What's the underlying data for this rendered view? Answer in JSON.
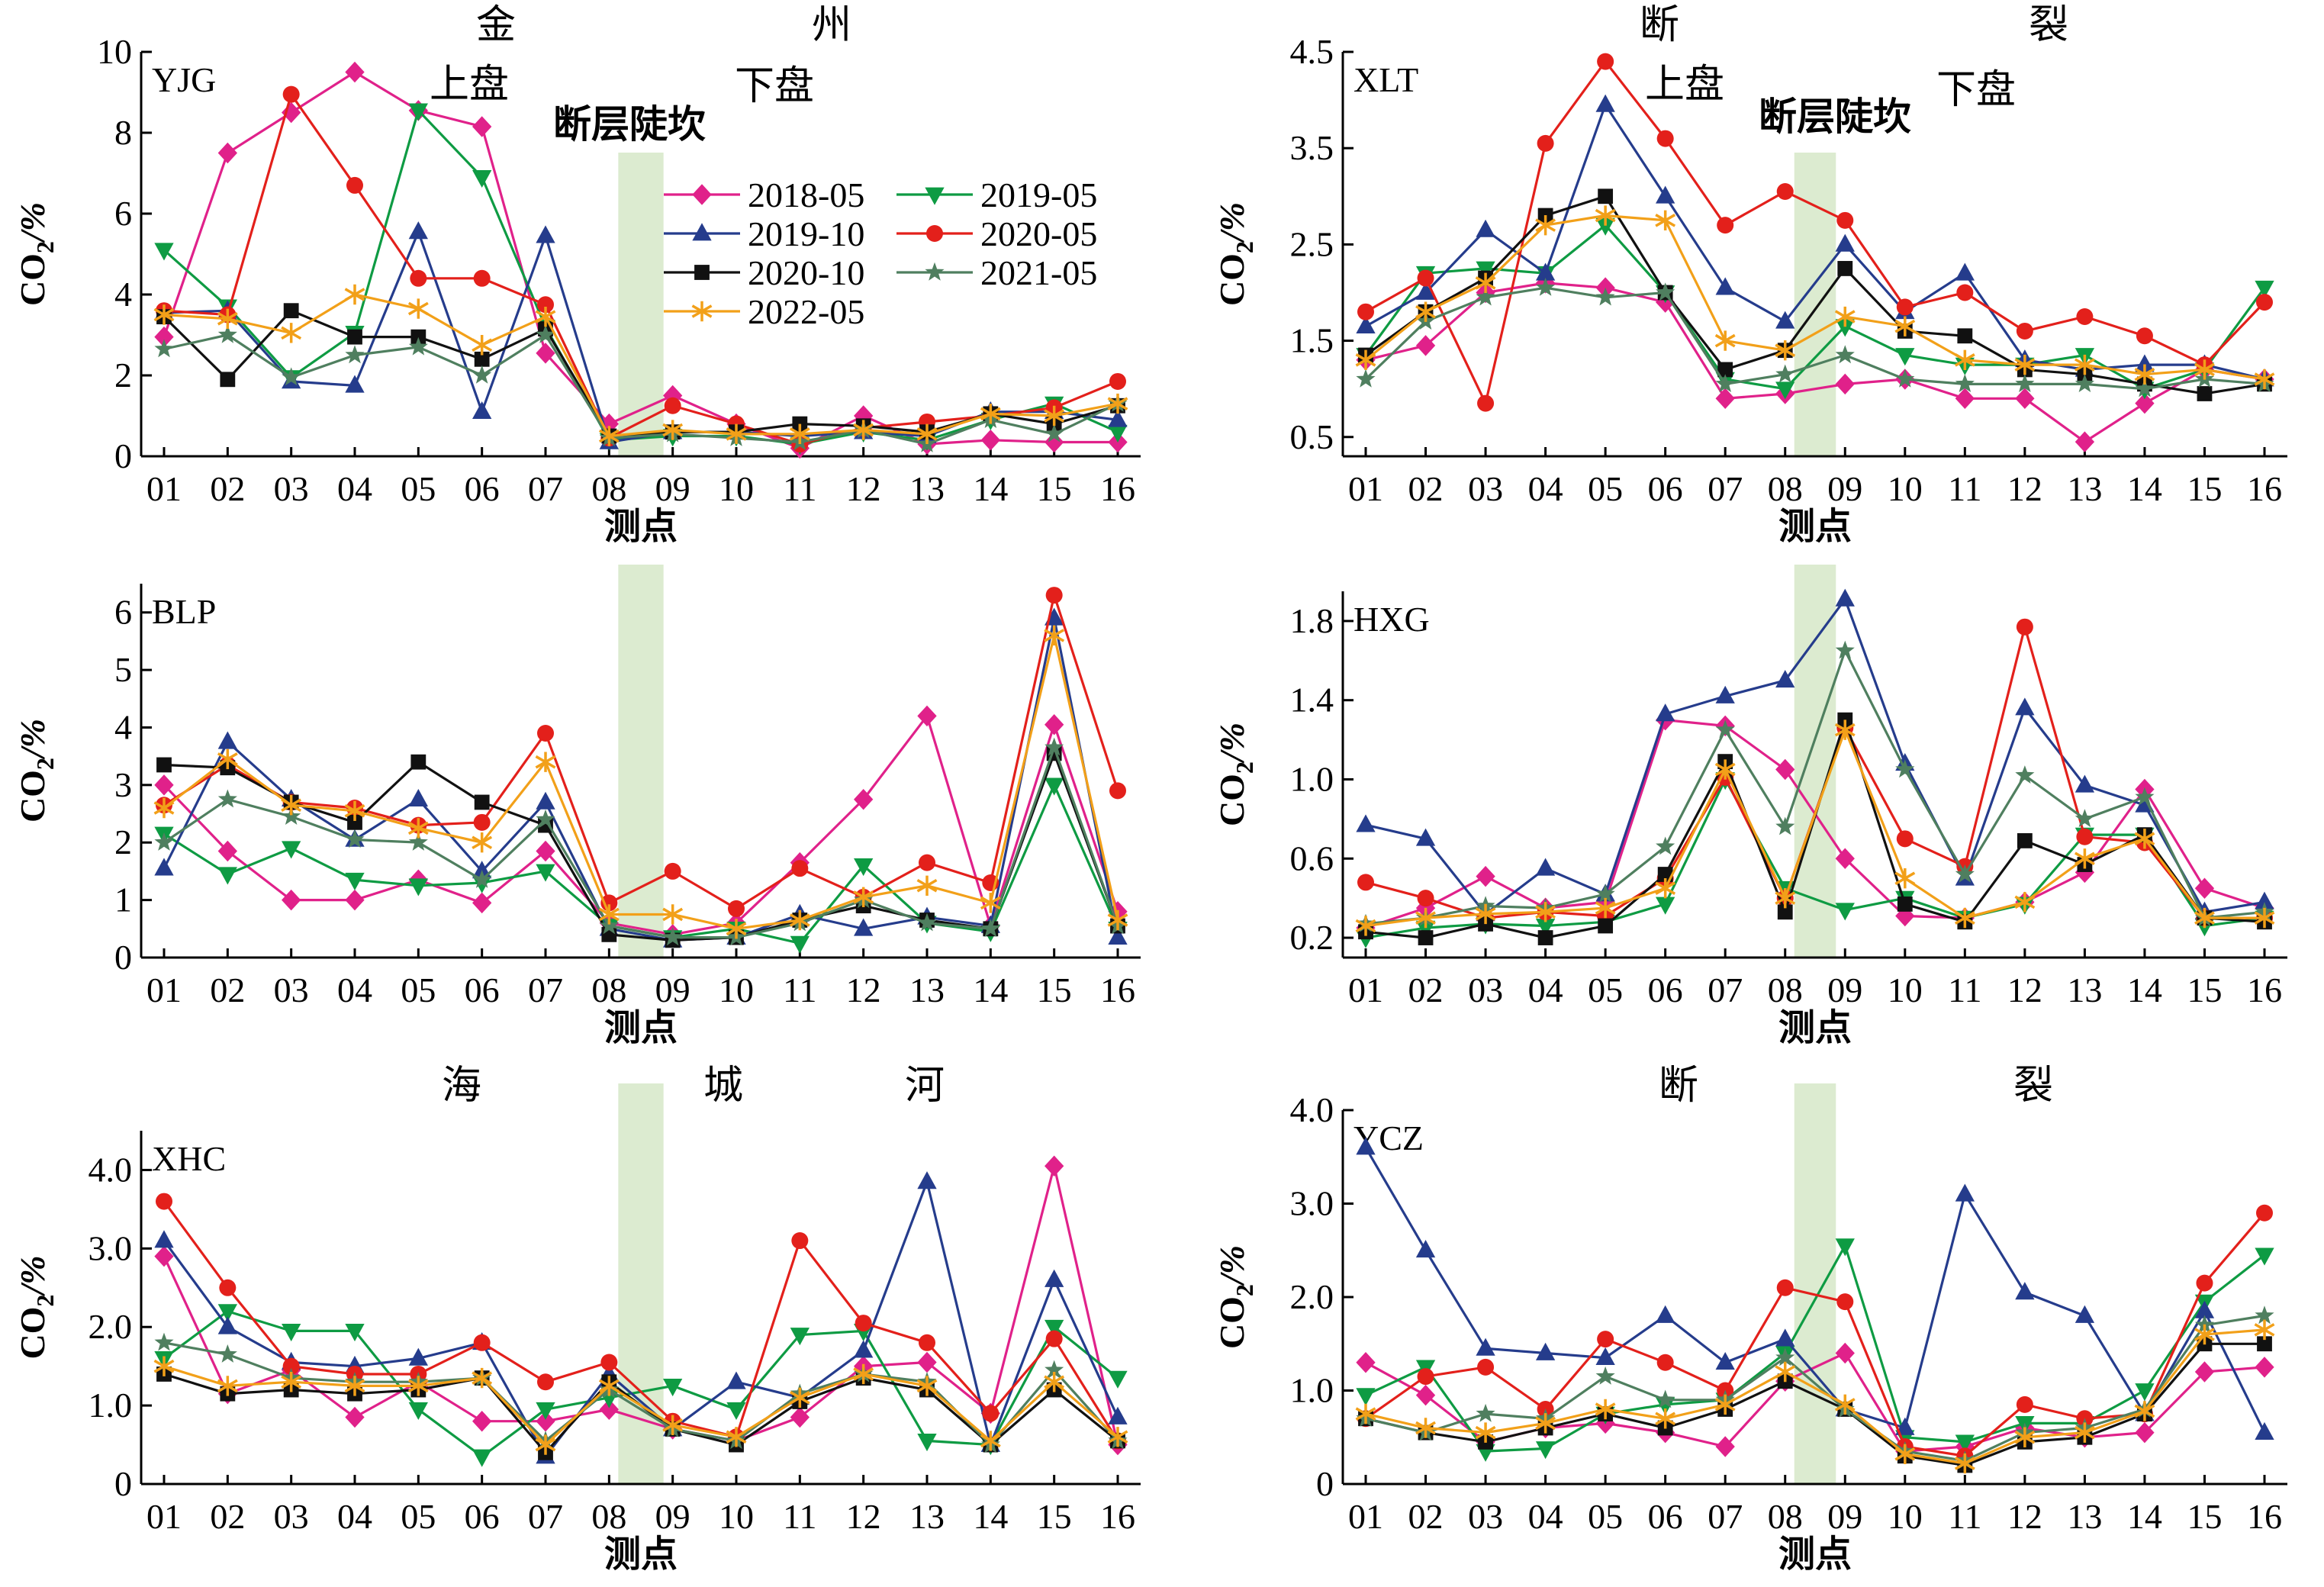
{
  "figure": {
    "xlabel": "测点",
    "ylabel_base": "CO",
    "ylabel_sub": "2",
    "ylabel_unit": "/%",
    "fault_scarp_label": "断层陡坎",
    "hanging_wall_label": "上盘",
    "footwall_label": "下盘",
    "top_left_title_chars": [
      "金",
      "州"
    ],
    "top_right_title_chars": [
      "断",
      "裂"
    ],
    "bottom_left_title_chars": [
      "海",
      "城",
      "河"
    ],
    "bottom_right_title_chars": [
      "断",
      "裂"
    ],
    "band_color": "#dcebd0"
  },
  "legend": [
    {
      "label": "2018-05",
      "color": "#e0218a",
      "marker": "diamond"
    },
    {
      "label": "2019-05",
      "color": "#0e9b43",
      "marker": "triangle-down"
    },
    {
      "label": "2019-10",
      "color": "#253c8c",
      "marker": "triangle-up"
    },
    {
      "label": "2020-05",
      "color": "#e3201b",
      "marker": "circle"
    },
    {
      "label": "2020-10",
      "color": "#111111",
      "marker": "square"
    },
    {
      "label": "2021-05",
      "color": "#4f7f5f",
      "marker": "star"
    },
    {
      "label": "2022-05",
      "color": "#f2a019",
      "marker": "asterisk"
    }
  ],
  "chart_data": [
    {
      "type": "line",
      "panel": "YJG",
      "categories": [
        "01",
        "02",
        "03",
        "04",
        "05",
        "06",
        "07",
        "08",
        "09",
        "10",
        "11",
        "12",
        "13",
        "14",
        "15",
        "16"
      ],
      "ylim": [
        0,
        10
      ],
      "yticks": [
        0,
        2,
        4,
        6,
        8,
        10
      ],
      "ytick_labels": [
        "0",
        "2",
        "4",
        "6",
        "8",
        "10"
      ],
      "series": [
        {
          "name": "2018-05",
          "values": [
            2.95,
            7.5,
            8.5,
            9.5,
            8.55,
            8.15,
            2.55,
            0.8,
            1.5,
            0.8,
            0.2,
            1.0,
            0.3,
            0.4,
            0.35,
            0.35
          ]
        },
        {
          "name": "2019-05",
          "values": [
            5.1,
            3.7,
            1.95,
            3.05,
            8.55,
            6.9,
            3.2,
            0.4,
            0.5,
            0.5,
            0.3,
            0.6,
            0.4,
            0.9,
            1.3,
            0.6
          ]
        },
        {
          "name": "2019-10",
          "values": [
            3.55,
            3.6,
            1.85,
            1.75,
            5.55,
            1.1,
            5.45,
            0.35,
            0.6,
            0.6,
            0.5,
            0.6,
            0.5,
            1.1,
            1.1,
            0.9
          ]
        },
        {
          "name": "2020-05",
          "values": [
            3.6,
            3.5,
            8.95,
            6.7,
            4.4,
            4.4,
            3.75,
            0.45,
            1.25,
            0.8,
            0.3,
            0.7,
            0.85,
            1.0,
            1.2,
            1.85
          ]
        },
        {
          "name": "2020-10",
          "values": [
            3.45,
            1.9,
            3.6,
            2.95,
            2.95,
            2.4,
            3.15,
            0.5,
            0.6,
            0.6,
            0.8,
            0.75,
            0.6,
            1.05,
            0.8,
            1.25
          ]
        },
        {
          "name": "2021-05",
          "values": [
            2.65,
            3.0,
            1.95,
            2.5,
            2.7,
            2.0,
            3.0,
            0.45,
            0.55,
            0.45,
            0.35,
            0.65,
            0.3,
            0.9,
            0.55,
            1.3
          ]
        },
        {
          "name": "2022-05",
          "values": [
            3.5,
            3.4,
            3.05,
            4.0,
            3.65,
            2.75,
            3.45,
            0.5,
            0.65,
            0.55,
            0.55,
            0.65,
            0.55,
            1.05,
            1.0,
            1.3
          ]
        }
      ]
    },
    {
      "type": "line",
      "panel": "XLT",
      "categories": [
        "01",
        "02",
        "03",
        "04",
        "05",
        "06",
        "07",
        "08",
        "09",
        "10",
        "11",
        "12",
        "13",
        "14",
        "15",
        "16"
      ],
      "ylim": [
        0.3,
        4.5
      ],
      "yticks": [
        0.5,
        1.5,
        2.5,
        3.5,
        4.5
      ],
      "ytick_labels": [
        "0.5",
        "1.5",
        "2.5",
        "3.5",
        "4.5"
      ],
      "series": [
        {
          "name": "2018-05",
          "values": [
            1.3,
            1.45,
            2.0,
            2.1,
            2.05,
            1.9,
            0.9,
            0.95,
            1.05,
            1.1,
            0.9,
            0.9,
            0.45,
            0.85,
            1.2,
            1.1
          ]
        },
        {
          "name": "2019-05",
          "values": [
            1.35,
            2.2,
            2.25,
            2.2,
            2.7,
            2.0,
            1.1,
            1.0,
            1.65,
            1.35,
            1.25,
            1.25,
            1.35,
            1.0,
            1.2,
            2.05
          ]
        },
        {
          "name": "2019-10",
          "values": [
            1.65,
            2.0,
            2.65,
            2.2,
            3.95,
            3.0,
            2.05,
            1.7,
            2.5,
            1.8,
            2.2,
            1.3,
            1.2,
            1.25,
            1.25,
            1.1
          ]
        },
        {
          "name": "2020-05",
          "values": [
            1.8,
            2.15,
            0.85,
            3.55,
            4.4,
            3.6,
            2.7,
            3.05,
            2.75,
            1.85,
            2.0,
            1.6,
            1.75,
            1.55,
            1.25,
            1.9
          ]
        },
        {
          "name": "2020-10",
          "values": [
            1.35,
            1.8,
            2.15,
            2.8,
            3.0,
            2.0,
            1.2,
            1.4,
            2.25,
            1.6,
            1.55,
            1.2,
            1.15,
            1.05,
            0.95,
            1.05
          ]
        },
        {
          "name": "2021-05",
          "values": [
            1.1,
            1.7,
            1.95,
            2.05,
            1.95,
            2.0,
            1.05,
            1.15,
            1.35,
            1.1,
            1.05,
            1.05,
            1.05,
            1.0,
            1.1,
            1.05
          ]
        },
        {
          "name": "2022-05",
          "values": [
            1.3,
            1.8,
            2.1,
            2.7,
            2.8,
            2.75,
            1.5,
            1.4,
            1.75,
            1.65,
            1.3,
            1.25,
            1.25,
            1.15,
            1.2,
            1.1
          ]
        }
      ]
    },
    {
      "type": "line",
      "panel": "BLP",
      "categories": [
        "01",
        "02",
        "03",
        "04",
        "05",
        "06",
        "07",
        "08",
        "09",
        "10",
        "11",
        "12",
        "13",
        "14",
        "15",
        "16"
      ],
      "ylim": [
        0,
        6.5
      ],
      "yticks": [
        0,
        1,
        2,
        3,
        4,
        5,
        6
      ],
      "ytick_labels": [
        "0",
        "1",
        "2",
        "3",
        "4",
        "5",
        "6"
      ],
      "series": [
        {
          "name": "2018-05",
          "values": [
            3.0,
            1.85,
            1.0,
            1.0,
            1.35,
            0.95,
            1.85,
            0.6,
            0.4,
            0.6,
            1.65,
            2.75,
            4.2,
            0.55,
            4.05,
            0.8
          ]
        },
        {
          "name": "2019-05",
          "values": [
            2.15,
            1.45,
            1.9,
            1.35,
            1.25,
            1.3,
            1.5,
            0.55,
            0.35,
            0.5,
            0.25,
            1.6,
            0.6,
            0.45,
            3.0,
            0.5
          ]
        },
        {
          "name": "2019-10",
          "values": [
            1.55,
            3.75,
            2.75,
            2.05,
            2.75,
            1.5,
            2.7,
            0.5,
            0.3,
            0.35,
            0.75,
            0.5,
            0.7,
            0.55,
            5.9,
            0.35
          ]
        },
        {
          "name": "2020-05",
          "values": [
            2.65,
            3.35,
            2.7,
            2.6,
            2.3,
            2.35,
            3.9,
            0.95,
            1.5,
            0.85,
            1.55,
            1.05,
            1.65,
            1.3,
            6.3,
            2.9
          ]
        },
        {
          "name": "2020-10",
          "values": [
            3.35,
            3.3,
            2.7,
            2.35,
            3.4,
            2.7,
            2.3,
            0.4,
            0.3,
            0.35,
            0.65,
            0.9,
            0.65,
            0.5,
            3.55,
            0.55
          ]
        },
        {
          "name": "2021-05",
          "values": [
            2.0,
            2.75,
            2.45,
            2.05,
            2.0,
            1.35,
            2.4,
            0.55,
            0.35,
            0.35,
            0.6,
            1.0,
            0.6,
            0.5,
            3.65,
            0.55
          ]
        },
        {
          "name": "2022-05",
          "values": [
            2.6,
            3.45,
            2.65,
            2.55,
            2.25,
            2.0,
            3.4,
            0.75,
            0.75,
            0.5,
            0.65,
            1.05,
            1.25,
            0.95,
            5.6,
            0.65
          ]
        }
      ]
    },
    {
      "type": "line",
      "panel": "HXG",
      "categories": [
        "01",
        "02",
        "03",
        "04",
        "05",
        "06",
        "07",
        "08",
        "09",
        "10",
        "11",
        "12",
        "13",
        "14",
        "15",
        "16"
      ],
      "ylim": [
        0.1,
        1.95
      ],
      "yticks": [
        0.2,
        0.6,
        1.0,
        1.4,
        1.8
      ],
      "ytick_labels": [
        "0.2",
        "0.6",
        "1.0",
        "1.4",
        "1.8"
      ],
      "series": [
        {
          "name": "2018-05",
          "values": [
            0.25,
            0.35,
            0.51,
            0.35,
            0.38,
            1.3,
            1.27,
            1.05,
            0.6,
            0.31,
            0.3,
            0.38,
            0.53,
            0.95,
            0.45,
            0.35
          ]
        },
        {
          "name": "2019-05",
          "values": [
            0.2,
            0.25,
            0.27,
            0.26,
            0.28,
            0.37,
            1.0,
            0.45,
            0.34,
            0.4,
            0.3,
            0.37,
            0.72,
            0.72,
            0.26,
            0.3
          ]
        },
        {
          "name": "2019-10",
          "values": [
            0.77,
            0.7,
            0.32,
            0.55,
            0.42,
            1.33,
            1.42,
            1.5,
            1.91,
            1.08,
            0.5,
            1.36,
            0.97,
            0.87,
            0.33,
            0.38
          ]
        },
        {
          "name": "2020-05",
          "values": [
            0.48,
            0.4,
            0.3,
            0.33,
            0.31,
            0.5,
            1.01,
            0.4,
            1.26,
            0.7,
            0.56,
            1.77,
            0.71,
            0.68,
            0.3,
            0.3
          ]
        },
        {
          "name": "2020-10",
          "values": [
            0.23,
            0.2,
            0.27,
            0.2,
            0.26,
            0.52,
            1.09,
            0.33,
            1.3,
            0.37,
            0.28,
            0.69,
            0.57,
            0.72,
            0.3,
            0.28
          ]
        },
        {
          "name": "2021-05",
          "values": [
            0.27,
            0.3,
            0.36,
            0.35,
            0.42,
            0.66,
            1.25,
            0.76,
            1.65,
            1.05,
            0.52,
            1.02,
            0.8,
            0.91,
            0.3,
            0.33
          ]
        },
        {
          "name": "2022-05",
          "values": [
            0.26,
            0.3,
            0.32,
            0.33,
            0.35,
            0.45,
            1.05,
            0.4,
            1.25,
            0.5,
            0.3,
            0.38,
            0.6,
            0.7,
            0.3,
            0.3
          ]
        }
      ]
    },
    {
      "type": "line",
      "panel": "XHC",
      "categories": [
        "01",
        "02",
        "03",
        "04",
        "05",
        "06",
        "07",
        "08",
        "09",
        "10",
        "11",
        "12",
        "13",
        "14",
        "15",
        "16"
      ],
      "ylim": [
        0,
        4.5
      ],
      "yticks": [
        0,
        1.0,
        2.0,
        3.0,
        4.0
      ],
      "ytick_labels": [
        "0",
        "1.0",
        "2.0",
        "3.0",
        "4.0"
      ],
      "series": [
        {
          "name": "2018-05",
          "values": [
            2.9,
            1.15,
            1.45,
            0.85,
            1.3,
            0.8,
            0.8,
            0.95,
            0.7,
            0.55,
            0.85,
            1.5,
            1.55,
            0.9,
            4.05,
            0.5
          ]
        },
        {
          "name": "2019-05",
          "values": [
            1.6,
            2.2,
            1.95,
            1.95,
            0.95,
            0.35,
            0.95,
            1.1,
            1.25,
            0.95,
            1.9,
            1.95,
            0.55,
            0.5,
            2.0,
            1.35
          ]
        },
        {
          "name": "2019-10",
          "values": [
            3.1,
            2.0,
            1.55,
            1.5,
            1.6,
            1.8,
            0.35,
            1.4,
            0.7,
            1.3,
            1.1,
            1.7,
            3.85,
            0.5,
            2.6,
            0.85
          ]
        },
        {
          "name": "2020-05",
          "values": [
            3.6,
            2.5,
            1.5,
            1.4,
            1.4,
            1.8,
            1.3,
            1.55,
            0.8,
            0.6,
            3.1,
            2.05,
            1.8,
            0.9,
            1.85,
            0.55
          ]
        },
        {
          "name": "2020-10",
          "values": [
            1.4,
            1.15,
            1.2,
            1.15,
            1.2,
            1.35,
            0.4,
            1.3,
            0.7,
            0.5,
            1.05,
            1.35,
            1.2,
            0.5,
            1.2,
            0.55
          ]
        },
        {
          "name": "2021-05",
          "values": [
            1.8,
            1.65,
            1.35,
            1.3,
            1.3,
            1.35,
            0.55,
            1.2,
            0.7,
            0.55,
            1.15,
            1.4,
            1.3,
            0.5,
            1.45,
            0.55
          ]
        },
        {
          "name": "2022-05",
          "values": [
            1.5,
            1.25,
            1.3,
            1.25,
            1.25,
            1.35,
            0.5,
            1.25,
            0.75,
            0.6,
            1.1,
            1.4,
            1.25,
            0.55,
            1.3,
            0.6
          ]
        }
      ]
    },
    {
      "type": "line",
      "panel": "YCZ",
      "categories": [
        "01",
        "02",
        "03",
        "04",
        "05",
        "06",
        "07",
        "08",
        "09",
        "10",
        "11",
        "12",
        "13",
        "14",
        "15",
        "16"
      ],
      "ylim": [
        0,
        4.0
      ],
      "yticks": [
        0,
        1.0,
        2.0,
        3.0,
        4.0
      ],
      "ytick_labels": [
        "0",
        "1.0",
        "2.0",
        "3.0",
        "4.0"
      ],
      "series": [
        {
          "name": "2018-05",
          "values": [
            1.3,
            0.95,
            0.45,
            0.6,
            0.65,
            0.55,
            0.4,
            1.1,
            1.4,
            0.35,
            0.4,
            0.6,
            0.5,
            0.55,
            1.2,
            1.25
          ]
        },
        {
          "name": "2019-05",
          "values": [
            0.95,
            1.25,
            0.35,
            0.38,
            0.75,
            0.85,
            0.9,
            1.4,
            2.55,
            0.5,
            0.45,
            0.65,
            0.65,
            1.0,
            1.95,
            2.45
          ]
        },
        {
          "name": "2019-10",
          "values": [
            3.6,
            2.5,
            1.45,
            1.4,
            1.35,
            1.8,
            1.3,
            1.55,
            0.8,
            0.6,
            3.1,
            2.05,
            1.8,
            0.75,
            1.85,
            0.55
          ]
        },
        {
          "name": "2020-05",
          "values": [
            0.7,
            1.15,
            1.25,
            0.8,
            1.55,
            1.3,
            1.0,
            2.1,
            1.95,
            0.4,
            0.3,
            0.85,
            0.7,
            0.75,
            2.15,
            2.9
          ]
        },
        {
          "name": "2020-10",
          "values": [
            0.7,
            0.55,
            0.45,
            0.6,
            0.75,
            0.6,
            0.8,
            1.1,
            0.8,
            0.3,
            0.2,
            0.45,
            0.5,
            0.75,
            1.5,
            1.5
          ]
        },
        {
          "name": "2021-05",
          "values": [
            0.7,
            0.55,
            0.75,
            0.7,
            1.15,
            0.9,
            0.9,
            1.35,
            0.8,
            0.35,
            0.25,
            0.55,
            0.6,
            0.8,
            1.7,
            1.8
          ]
        },
        {
          "name": "2022-05",
          "values": [
            0.75,
            0.6,
            0.55,
            0.65,
            0.8,
            0.7,
            0.85,
            1.2,
            0.85,
            0.32,
            0.22,
            0.5,
            0.55,
            0.78,
            1.6,
            1.65
          ]
        }
      ]
    }
  ]
}
